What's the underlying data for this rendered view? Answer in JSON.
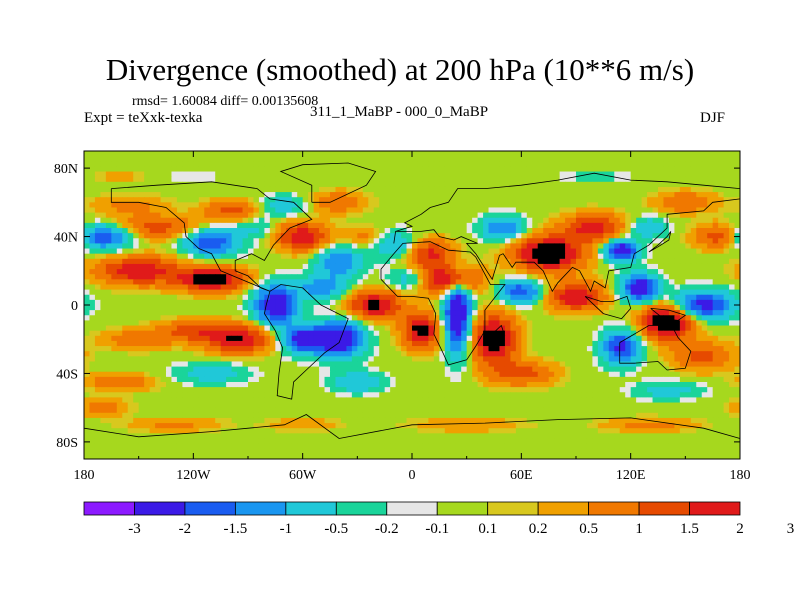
{
  "chart_data": {
    "type": "heatmap",
    "title": "Divergence (smoothed) at 200 hPa (10**6 m/s)",
    "stats": "rmsd= 1.60084 diff= 0.00135608",
    "experiment": "Expt = teXxk-texka",
    "difference_label": "311_1_MaBP - 000_0_MaBP",
    "season": "DJF",
    "xlim": [
      -180,
      180
    ],
    "ylim": [
      -90,
      90
    ],
    "x_ticks": [
      {
        "value": -180,
        "label": "180"
      },
      {
        "value": -120,
        "label": "120W"
      },
      {
        "value": -60,
        "label": "60W"
      },
      {
        "value": 0,
        "label": "0"
      },
      {
        "value": 60,
        "label": "60E"
      },
      {
        "value": 120,
        "label": "120E"
      },
      {
        "value": 180,
        "label": "180"
      }
    ],
    "y_ticks": [
      {
        "value": 80,
        "label": "80N"
      },
      {
        "value": 40,
        "label": "40N"
      },
      {
        "value": 0,
        "label": "0"
      },
      {
        "value": -40,
        "label": "40S"
      },
      {
        "value": -80,
        "label": "80S"
      }
    ],
    "colorbar": {
      "colors": [
        "#8c1aff",
        "#3b1ae6",
        "#1a5cf0",
        "#1a96f0",
        "#20c8d8",
        "#1ad49a",
        "#e6e6e6",
        "#a6d81e",
        "#d8c81e",
        "#f0a000",
        "#f07800",
        "#e64a00",
        "#e01a1a"
      ],
      "levels": [
        "-3",
        "-2",
        "-1.5",
        "-1",
        "-0.5",
        "-0.2",
        "-0.1",
        "0.1",
        "0.2",
        "0.5",
        "1",
        "1.5",
        "2",
        "3"
      ]
    },
    "blobs": [
      {
        "lon": -170,
        "lat": 40,
        "v": -2.2,
        "rx": 16,
        "ry": 7
      },
      {
        "lon": -150,
        "lat": 20,
        "v": 2.0,
        "rx": 22,
        "ry": 8
      },
      {
        "lon": -140,
        "lat": 45,
        "v": 1.2,
        "rx": 25,
        "ry": 7
      },
      {
        "lon": -155,
        "lat": 58,
        "v": 0.6,
        "rx": 20,
        "ry": 6
      },
      {
        "lon": -110,
        "lat": 37,
        "v": -2.0,
        "rx": 15,
        "ry": 8
      },
      {
        "lon": -110,
        "lat": 15,
        "v": 2.5,
        "rx": 18,
        "ry": 7
      },
      {
        "lon": -100,
        "lat": 55,
        "v": 1.2,
        "rx": 14,
        "ry": 6
      },
      {
        "lon": -85,
        "lat": 45,
        "v": -0.6,
        "rx": 10,
        "ry": 6
      },
      {
        "lon": -60,
        "lat": 40,
        "v": 2.0,
        "rx": 14,
        "ry": 8
      },
      {
        "lon": -70,
        "lat": 58,
        "v": -0.8,
        "rx": 12,
        "ry": 6
      },
      {
        "lon": -40,
        "lat": 60,
        "v": 1.0,
        "rx": 14,
        "ry": 6
      },
      {
        "lon": -75,
        "lat": 0,
        "v": -2.8,
        "rx": 11,
        "ry": 11
      },
      {
        "lon": -50,
        "lat": 10,
        "v": -1.3,
        "rx": 14,
        "ry": 7
      },
      {
        "lon": -40,
        "lat": 25,
        "v": -1.5,
        "rx": 12,
        "ry": 9
      },
      {
        "lon": -60,
        "lat": -20,
        "v": -2.3,
        "rx": 12,
        "ry": 8
      },
      {
        "lon": -40,
        "lat": -20,
        "v": -2.8,
        "rx": 13,
        "ry": 10
      },
      {
        "lon": -95,
        "lat": -20,
        "v": 2.0,
        "rx": 18,
        "ry": 8
      },
      {
        "lon": -120,
        "lat": -15,
        "v": 1.2,
        "rx": 18,
        "ry": 6
      },
      {
        "lon": -150,
        "lat": -20,
        "v": 0.8,
        "rx": 20,
        "ry": 6
      },
      {
        "lon": -20,
        "lat": 0,
        "v": 2.2,
        "rx": 14,
        "ry": 8
      },
      {
        "lon": -10,
        "lat": 35,
        "v": -1.2,
        "rx": 12,
        "ry": 8
      },
      {
        "lon": 0,
        "lat": 15,
        "v": -1.0,
        "rx": 12,
        "ry": 6
      },
      {
        "lon": -25,
        "lat": 40,
        "v": 0.7,
        "rx": 12,
        "ry": 6
      },
      {
        "lon": 10,
        "lat": 30,
        "v": 1.6,
        "rx": 14,
        "ry": 8
      },
      {
        "lon": 20,
        "lat": 15,
        "v": 2.5,
        "rx": 16,
        "ry": 8
      },
      {
        "lon": 5,
        "lat": -15,
        "v": 2.3,
        "rx": 10,
        "ry": 10
      },
      {
        "lon": 25,
        "lat": -5,
        "v": -3.0,
        "rx": 7,
        "ry": 22
      },
      {
        "lon": 45,
        "lat": -20,
        "v": 2.5,
        "rx": 12,
        "ry": 14
      },
      {
        "lon": 60,
        "lat": -40,
        "v": 1.2,
        "rx": 18,
        "ry": 7
      },
      {
        "lon": 50,
        "lat": 45,
        "v": -1.5,
        "rx": 12,
        "ry": 7
      },
      {
        "lon": 60,
        "lat": 8,
        "v": -1.8,
        "rx": 12,
        "ry": 7
      },
      {
        "lon": 75,
        "lat": 30,
        "v": 2.8,
        "rx": 18,
        "ry": 10
      },
      {
        "lon": 90,
        "lat": 5,
        "v": 2.0,
        "rx": 15,
        "ry": 8
      },
      {
        "lon": 100,
        "lat": 45,
        "v": 1.8,
        "rx": 16,
        "ry": 8
      },
      {
        "lon": 115,
        "lat": 32,
        "v": -2.8,
        "rx": 9,
        "ry": 6
      },
      {
        "lon": 130,
        "lat": 45,
        "v": -1.0,
        "rx": 10,
        "ry": 6
      },
      {
        "lon": 125,
        "lat": 10,
        "v": -2.6,
        "rx": 10,
        "ry": 8
      },
      {
        "lon": 160,
        "lat": 0,
        "v": -2.4,
        "rx": 16,
        "ry": 8
      },
      {
        "lon": 115,
        "lat": -25,
        "v": -2.2,
        "rx": 10,
        "ry": 10
      },
      {
        "lon": 140,
        "lat": -10,
        "v": 2.8,
        "rx": 14,
        "ry": 10
      },
      {
        "lon": 160,
        "lat": -30,
        "v": 1.2,
        "rx": 16,
        "ry": 8
      },
      {
        "lon": 170,
        "lat": 40,
        "v": 1.5,
        "rx": 14,
        "ry": 7
      },
      {
        "lon": 150,
        "lat": 60,
        "v": 1.0,
        "rx": 16,
        "ry": 6
      },
      {
        "lon": 140,
        "lat": -50,
        "v": -0.8,
        "rx": 18,
        "ry": 5
      },
      {
        "lon": -110,
        "lat": -40,
        "v": -0.8,
        "rx": 20,
        "ry": 6
      },
      {
        "lon": -30,
        "lat": -45,
        "v": -1.0,
        "rx": 14,
        "ry": 6
      },
      {
        "lon": -160,
        "lat": -45,
        "v": 0.9,
        "rx": 18,
        "ry": 5
      },
      {
        "lon": -130,
        "lat": -70,
        "v": 0.6,
        "rx": 25,
        "ry": 4
      },
      {
        "lon": 30,
        "lat": -70,
        "v": 0.5,
        "rx": 30,
        "ry": 4
      },
      {
        "lon": 130,
        "lat": -70,
        "v": 0.7,
        "rx": 25,
        "ry": 4
      },
      {
        "lon": -60,
        "lat": -70,
        "v": 0.4,
        "rx": 20,
        "ry": 4
      },
      {
        "lon": -170,
        "lat": -60,
        "v": 0.7,
        "rx": 14,
        "ry": 5
      },
      {
        "lon": -160,
        "lat": 75,
        "v": 0.3,
        "rx": 14,
        "ry": 4
      },
      {
        "lon": 100,
        "lat": 75,
        "v": -0.3,
        "rx": 20,
        "ry": 4
      },
      {
        "lon": -120,
        "lat": 75,
        "v": -0.2,
        "rx": 18,
        "ry": 4
      }
    ]
  }
}
